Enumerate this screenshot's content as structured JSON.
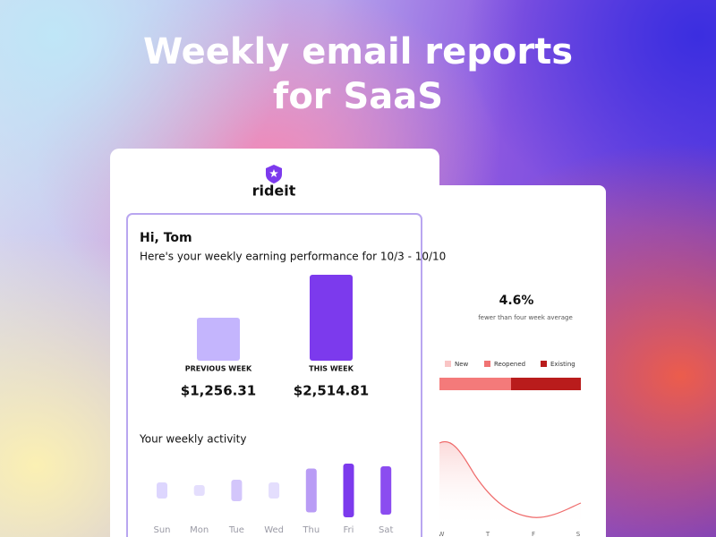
{
  "header": {
    "title_lines": [
      "Weekly email reports",
      "for SaaS"
    ]
  },
  "report_card": {
    "brand": "rideit",
    "greeting": "Hi, Tom",
    "intro": "Here's your weekly earning performance for 10/3 - 10/10",
    "earnings": [
      {
        "label": "PREVIOUS WEEK",
        "value": 1256.31,
        "value_label": "$1,256.31",
        "color": "#c4b5fd"
      },
      {
        "label": "THIS WEEK",
        "value": 2514.81,
        "value_label": "$2,514.81",
        "color": "#7c3aed"
      }
    ],
    "activity_heading": "Your weekly activity",
    "activity": {
      "days": [
        "Sun",
        "Mon",
        "Tue",
        "Wed",
        "Thu",
        "Fri",
        "Sat"
      ],
      "values": [
        18,
        12,
        24,
        18,
        49,
        60,
        54
      ],
      "colors": [
        "#ddd6fe",
        "#e4defd",
        "#d3c6fb",
        "#e4defd",
        "#b99cf5",
        "#7c3aed",
        "#8b4cf0"
      ]
    }
  },
  "side_card": {
    "stat": "4.6%",
    "stat_note": "fewer than four week average",
    "legend": [
      {
        "name": "New",
        "color": "#f9c5c5"
      },
      {
        "name": "Reopened",
        "color": "#f07373"
      },
      {
        "name": "Existing",
        "color": "#b91c1c"
      }
    ],
    "axis_labels": [
      "W",
      "T",
      "F",
      "S"
    ]
  }
}
